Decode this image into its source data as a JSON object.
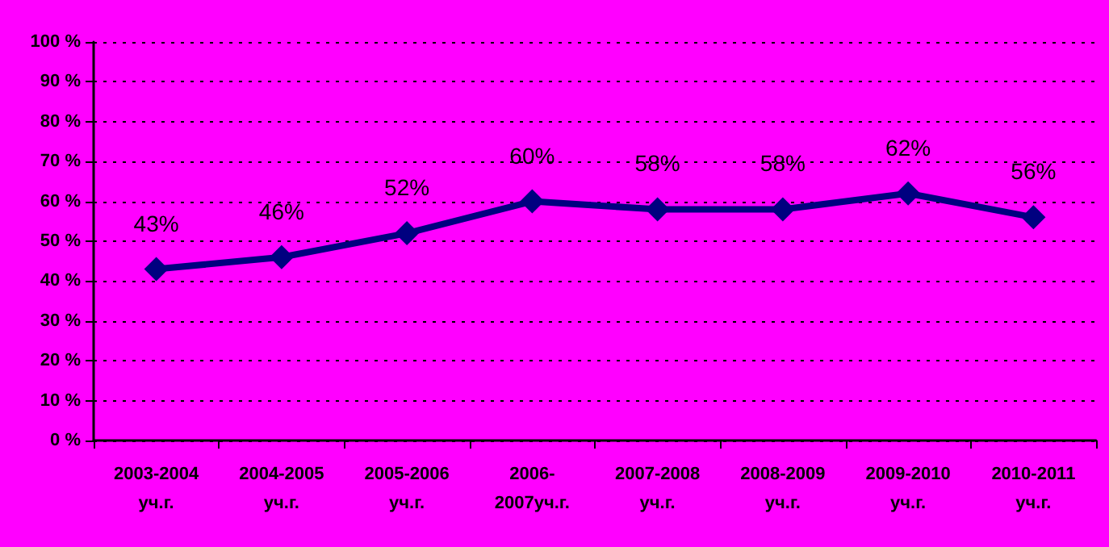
{
  "chart_data": {
    "type": "line",
    "categories": [
      "2003-2004\nуч.г.",
      "2004-2005\nуч.г.",
      "2005-2006\nуч.г.",
      "2006-\n2007уч.г.",
      "2007-2008\nуч.г.",
      "2008-2009\nуч.г.",
      "2009-2010\nуч.г.",
      "2010-2011\nуч.г."
    ],
    "series": [
      {
        "color": "#000080",
        "values": [
          43,
          46,
          52,
          60,
          58,
          58,
          62,
          56
        ],
        "value_labels": [
          "43%",
          "46%",
          "52%",
          "60%",
          "58%",
          "58%",
          "62%",
          "56%"
        ]
      }
    ],
    "ylim": [
      0,
      100
    ],
    "yticks": [
      {
        "value": 0,
        "label": "0 %"
      },
      {
        "value": 10,
        "label": "10 %"
      },
      {
        "value": 20,
        "label": "20 %"
      },
      {
        "value": 30,
        "label": "30 %"
      },
      {
        "value": 40,
        "label": "40 %"
      },
      {
        "value": 50,
        "label": "50 %"
      },
      {
        "value": 60,
        "label": "60 %"
      },
      {
        "value": 70,
        "label": "70 %"
      },
      {
        "value": 80,
        "label": "80 %"
      },
      {
        "value": 90,
        "label": "90 %"
      },
      {
        "value": 100,
        "label": "100 %"
      }
    ],
    "grid": "y",
    "marker": "diamond",
    "line_style": "solid"
  }
}
